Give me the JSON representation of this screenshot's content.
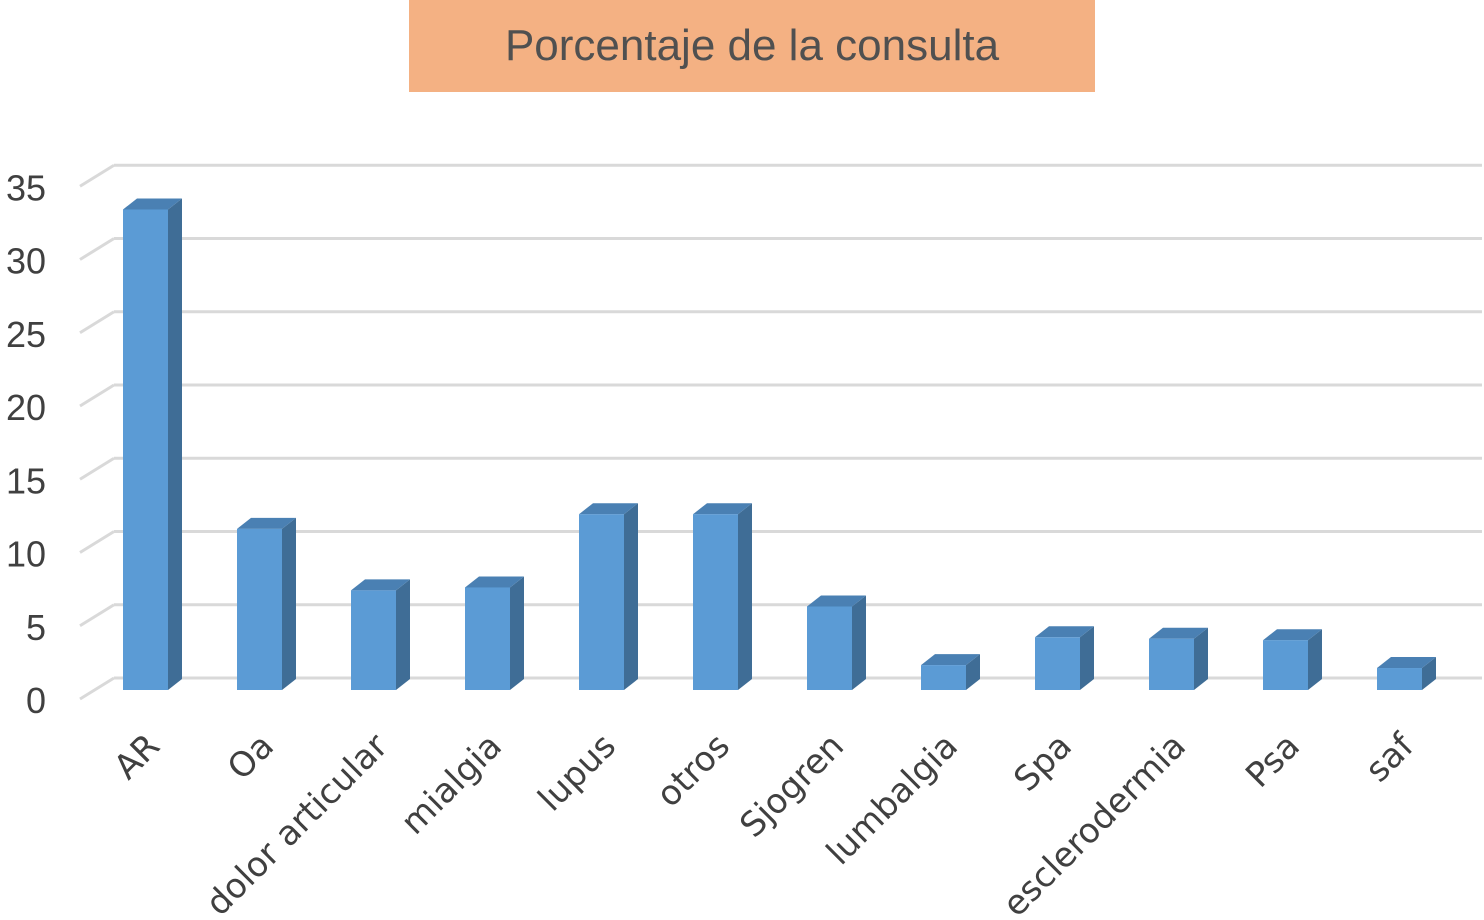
{
  "colors": {
    "title_bg": "#F4B183",
    "bar_front": "#5B9BD5",
    "bar_side": "#3F6D96",
    "bar_top": "#4A80B3",
    "grid": "#D9D9D9",
    "text": "#404040"
  },
  "chart_data": {
    "type": "bar",
    "title": "Porcentaje de la consulta",
    "xlabel": "",
    "ylabel": "",
    "ylim": [
      0,
      35
    ],
    "yticks": [
      "0",
      "5",
      "10",
      "15",
      "20",
      "25",
      "30",
      "35"
    ],
    "grid": true,
    "legend": "none",
    "style": "3d-column",
    "categories": [
      "AR",
      "Oa",
      "dolor articular",
      "mialgia",
      "lupus",
      "otros",
      "Sjogren",
      "lumbalgia",
      "Spa",
      "esclerodermia",
      "Psa",
      "saf"
    ],
    "values": [
      32.8,
      11.0,
      6.8,
      7.0,
      12.0,
      12.0,
      5.7,
      1.7,
      3.6,
      3.5,
      3.4,
      1.5
    ]
  }
}
